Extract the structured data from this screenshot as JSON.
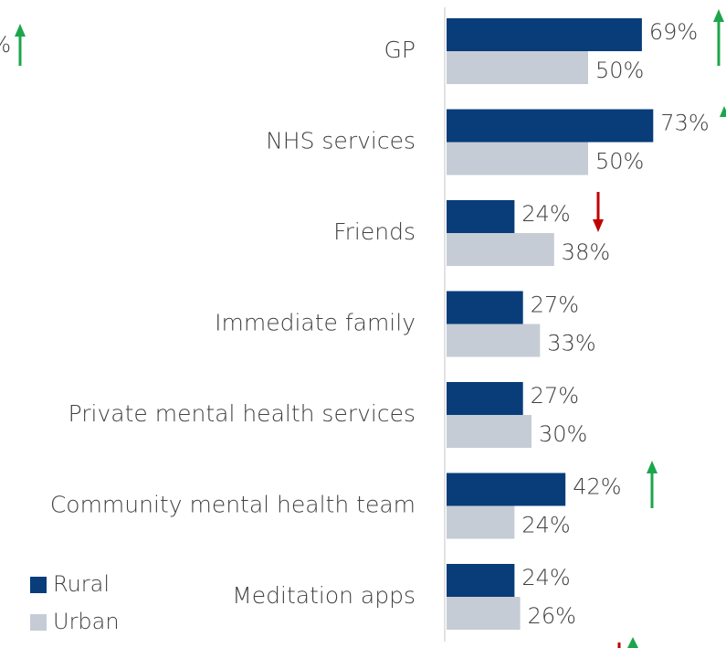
{
  "chart_data": {
    "type": "barh",
    "categories": [
      "GP",
      "NHS services",
      "Friends",
      "Immediate family",
      "Private mental health services",
      "Community mental health team",
      "Meditation apps"
    ],
    "series": [
      {
        "name": "Rural",
        "color": "#083d7a",
        "values": [
          69,
          73,
          24,
          27,
          27,
          42,
          24
        ],
        "value_labels": [
          "69%",
          "73%",
          "24%",
          "27%",
          "27%",
          "42%",
          "24%"
        ]
      },
      {
        "name": "Urban",
        "color": "#c5ccd5",
        "values": [
          50,
          50,
          38,
          33,
          30,
          24,
          26
        ],
        "value_labels": [
          "50%",
          "50%",
          "38%",
          "33%",
          "30%",
          "24%",
          "26%"
        ]
      }
    ],
    "xlim": [
      0,
      100
    ],
    "annotations": [
      "%"
    ]
  }
}
